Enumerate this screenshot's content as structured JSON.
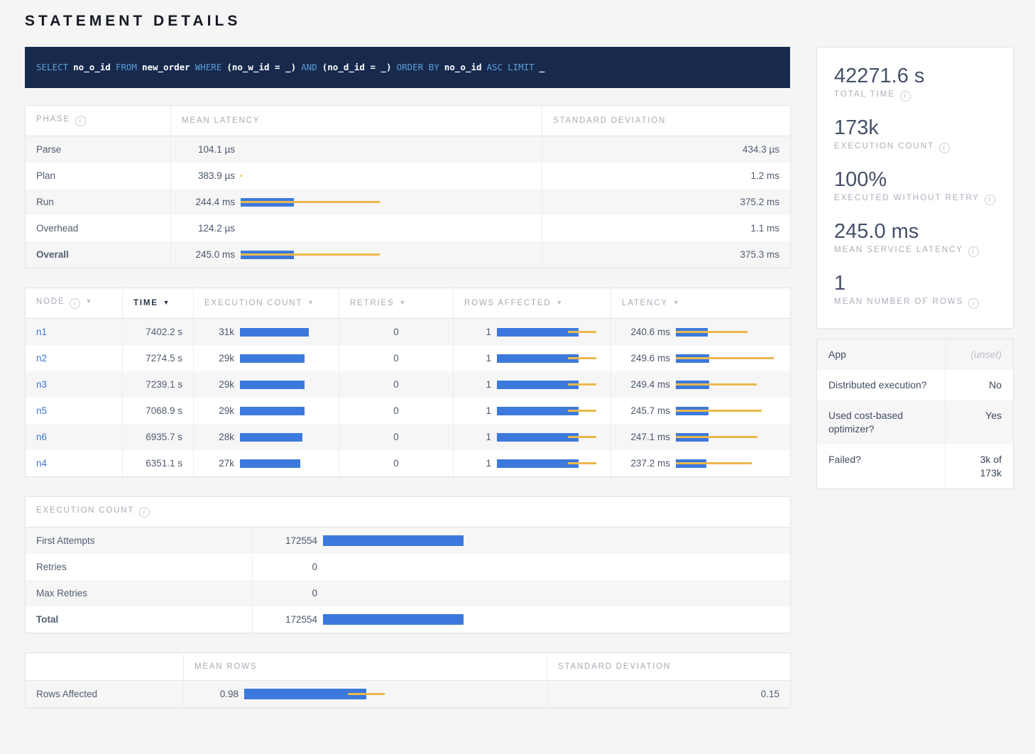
{
  "title": "STATEMENT DETAILS",
  "icons": {
    "info": "i",
    "sort": "▼"
  },
  "colors": {
    "accent_navy": "#17294d",
    "sql_keyword": "#5c9fd6",
    "bar_blue": "#3c79dc",
    "bar_yellow": "#ebb84e",
    "link_blue": "#3d78d0"
  },
  "sql": {
    "tokens": [
      {
        "t": "SELECT",
        "c": "kw"
      },
      {
        "t": "no_o_id",
        "c": "id"
      },
      {
        "t": "FROM",
        "c": "kw"
      },
      {
        "t": "new_order",
        "c": "id"
      },
      {
        "t": "WHERE",
        "c": "kw"
      },
      {
        "t": "(no_w_id = _)",
        "c": "id"
      },
      {
        "t": "AND",
        "c": "kw"
      },
      {
        "t": "(no_d_id = _)",
        "c": "id"
      },
      {
        "t": "ORDER BY",
        "c": "kw"
      },
      {
        "t": "no_o_id",
        "c": "id"
      },
      {
        "t": "ASC",
        "c": "kw"
      },
      {
        "t": "LIMIT",
        "c": "kw"
      },
      {
        "t": "_",
        "c": "id"
      }
    ]
  },
  "phase_table": {
    "headers": {
      "phase": "PHASE",
      "mean_latency": "MEAN LATENCY",
      "std_dev": "STANDARD DEVIATION"
    },
    "rows": [
      {
        "phase": "Parse",
        "mean": "104.1 µs",
        "std": "434.3 µs",
        "bar": {}
      },
      {
        "phase": "Plan",
        "mean": "383.9 µs",
        "std": "1.2 ms",
        "bar": {
          "yellow": 2,
          "yellowLeft": 0
        }
      },
      {
        "phase": "Run",
        "mean": "244.4 ms",
        "std": "375.2 ms",
        "bar": {
          "blue": 75,
          "yellow": 196,
          "yellowLeft": 0
        }
      },
      {
        "phase": "Overhead",
        "mean": "124.2 µs",
        "std": "1.1 ms",
        "bar": {}
      },
      {
        "phase": "Overall",
        "mean": "245.0 ms",
        "std": "375.3 ms",
        "bar": {
          "blue": 75,
          "yellow": 196,
          "yellowLeft": 0
        }
      }
    ]
  },
  "node_table": {
    "headers": {
      "node": "NODE",
      "time": "TIME",
      "exec_count": "EXECUTION COUNT",
      "retries": "RETRIES",
      "rows_affected": "ROWS AFFECTED",
      "latency": "LATENCY"
    },
    "rows": [
      {
        "node": "n1",
        "time": "7402.2 s",
        "exec_count": "31k",
        "retries": "0",
        "rows_affected": "1",
        "latency": "240.6 ms",
        "bars": {
          "exec": {
            "blue": 97
          },
          "rows": {
            "blue": 115,
            "yellow": 40,
            "yellowLeft": 100
          },
          "lat": {
            "blue": 45,
            "yellow": 101,
            "yellowLeft": 0
          }
        }
      },
      {
        "node": "n2",
        "time": "7274.5 s",
        "exec_count": "29k",
        "retries": "0",
        "rows_affected": "1",
        "latency": "249.6 ms",
        "bars": {
          "exec": {
            "blue": 91
          },
          "rows": {
            "blue": 115,
            "yellow": 40,
            "yellowLeft": 100
          },
          "lat": {
            "blue": 47,
            "yellow": 138,
            "yellowLeft": 0
          }
        }
      },
      {
        "node": "n3",
        "time": "7239.1 s",
        "exec_count": "29k",
        "retries": "0",
        "rows_affected": "1",
        "latency": "249.4 ms",
        "bars": {
          "exec": {
            "blue": 91
          },
          "rows": {
            "blue": 115,
            "yellow": 40,
            "yellowLeft": 100
          },
          "lat": {
            "blue": 47,
            "yellow": 114,
            "yellowLeft": 0
          }
        }
      },
      {
        "node": "n5",
        "time": "7068.9 s",
        "exec_count": "29k",
        "retries": "0",
        "rows_affected": "1",
        "latency": "245.7 ms",
        "bars": {
          "exec": {
            "blue": 91
          },
          "rows": {
            "blue": 115,
            "yellow": 40,
            "yellowLeft": 100
          },
          "lat": {
            "blue": 46,
            "yellow": 121,
            "yellowLeft": 0
          }
        }
      },
      {
        "node": "n6",
        "time": "6935.7 s",
        "exec_count": "28k",
        "retries": "0",
        "rows_affected": "1",
        "latency": "247.1 ms",
        "bars": {
          "exec": {
            "blue": 88
          },
          "rows": {
            "blue": 115,
            "yellow": 40,
            "yellowLeft": 100
          },
          "lat": {
            "blue": 46,
            "yellow": 115,
            "yellowLeft": 0
          }
        }
      },
      {
        "node": "n4",
        "time": "6351.1 s",
        "exec_count": "27k",
        "retries": "0",
        "rows_affected": "1",
        "latency": "237.2 ms",
        "bars": {
          "exec": {
            "blue": 85
          },
          "rows": {
            "blue": 115,
            "yellow": 40,
            "yellowLeft": 100
          },
          "lat": {
            "blue": 43,
            "yellow": 107,
            "yellowLeft": 0
          }
        }
      }
    ]
  },
  "exec_table": {
    "title": "EXECUTION COUNT",
    "rows": [
      {
        "label": "First Attempts",
        "value": "172554",
        "bar": {
          "blue": 198
        }
      },
      {
        "label": "Retries",
        "value": "0",
        "bar": {}
      },
      {
        "label": "Max Retries",
        "value": "0",
        "bar": {}
      },
      {
        "label": "Total",
        "value": "172554",
        "bar": {
          "blue": 198
        }
      }
    ]
  },
  "rows_table": {
    "headers": {
      "blank": "",
      "mean_rows": "MEAN ROWS",
      "std_dev": "STANDARD DEVIATION"
    },
    "rows": [
      {
        "label": "Rows Affected",
        "mean": "0.98",
        "std": "0.15",
        "bar": {
          "blue": 172,
          "yellow": 52,
          "yellowLeft": 146
        }
      }
    ]
  },
  "summary": {
    "stats": [
      {
        "value": "42271.6 s",
        "label": "TOTAL TIME"
      },
      {
        "value": "173k",
        "label": "EXECUTION COUNT"
      },
      {
        "value": "100%",
        "label": "EXECUTED WITHOUT RETRY"
      },
      {
        "value": "245.0 ms",
        "label": "MEAN SERVICE LATENCY"
      },
      {
        "value": "1",
        "label": "MEAN NUMBER OF ROWS"
      }
    ]
  },
  "details_table": {
    "rows": [
      {
        "label": "App",
        "value": "(unset)"
      },
      {
        "label": "Distributed execution?",
        "value": "No"
      },
      {
        "label": "Used cost-based optimizer?",
        "value": "Yes"
      },
      {
        "label": "Failed?",
        "value": "3k of 173k"
      }
    ]
  }
}
